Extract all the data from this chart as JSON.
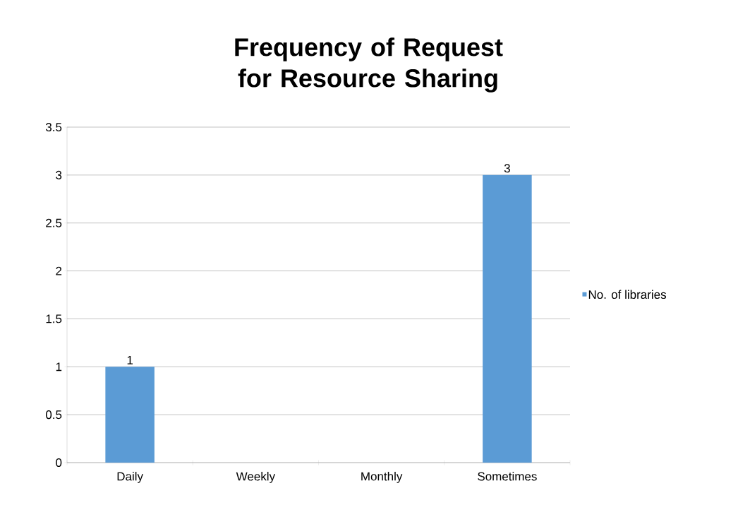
{
  "chart_data": {
    "type": "bar",
    "title": "Frequency of Request for Resource Sharing",
    "categories": [
      "Daily",
      "Weekly",
      "Monthly",
      "Sometimes"
    ],
    "series": [
      {
        "name": "No. of libraries",
        "color": "#5b9bd5",
        "values": [
          1,
          0,
          0,
          3
        ],
        "value_labels": [
          "1",
          null,
          null,
          "3"
        ]
      }
    ],
    "ylim": [
      0,
      3.5
    ],
    "yticks": [
      0,
      0.5,
      1,
      1.5,
      2,
      2.5,
      3,
      3.5
    ],
    "grid": "y",
    "legend": "right"
  }
}
